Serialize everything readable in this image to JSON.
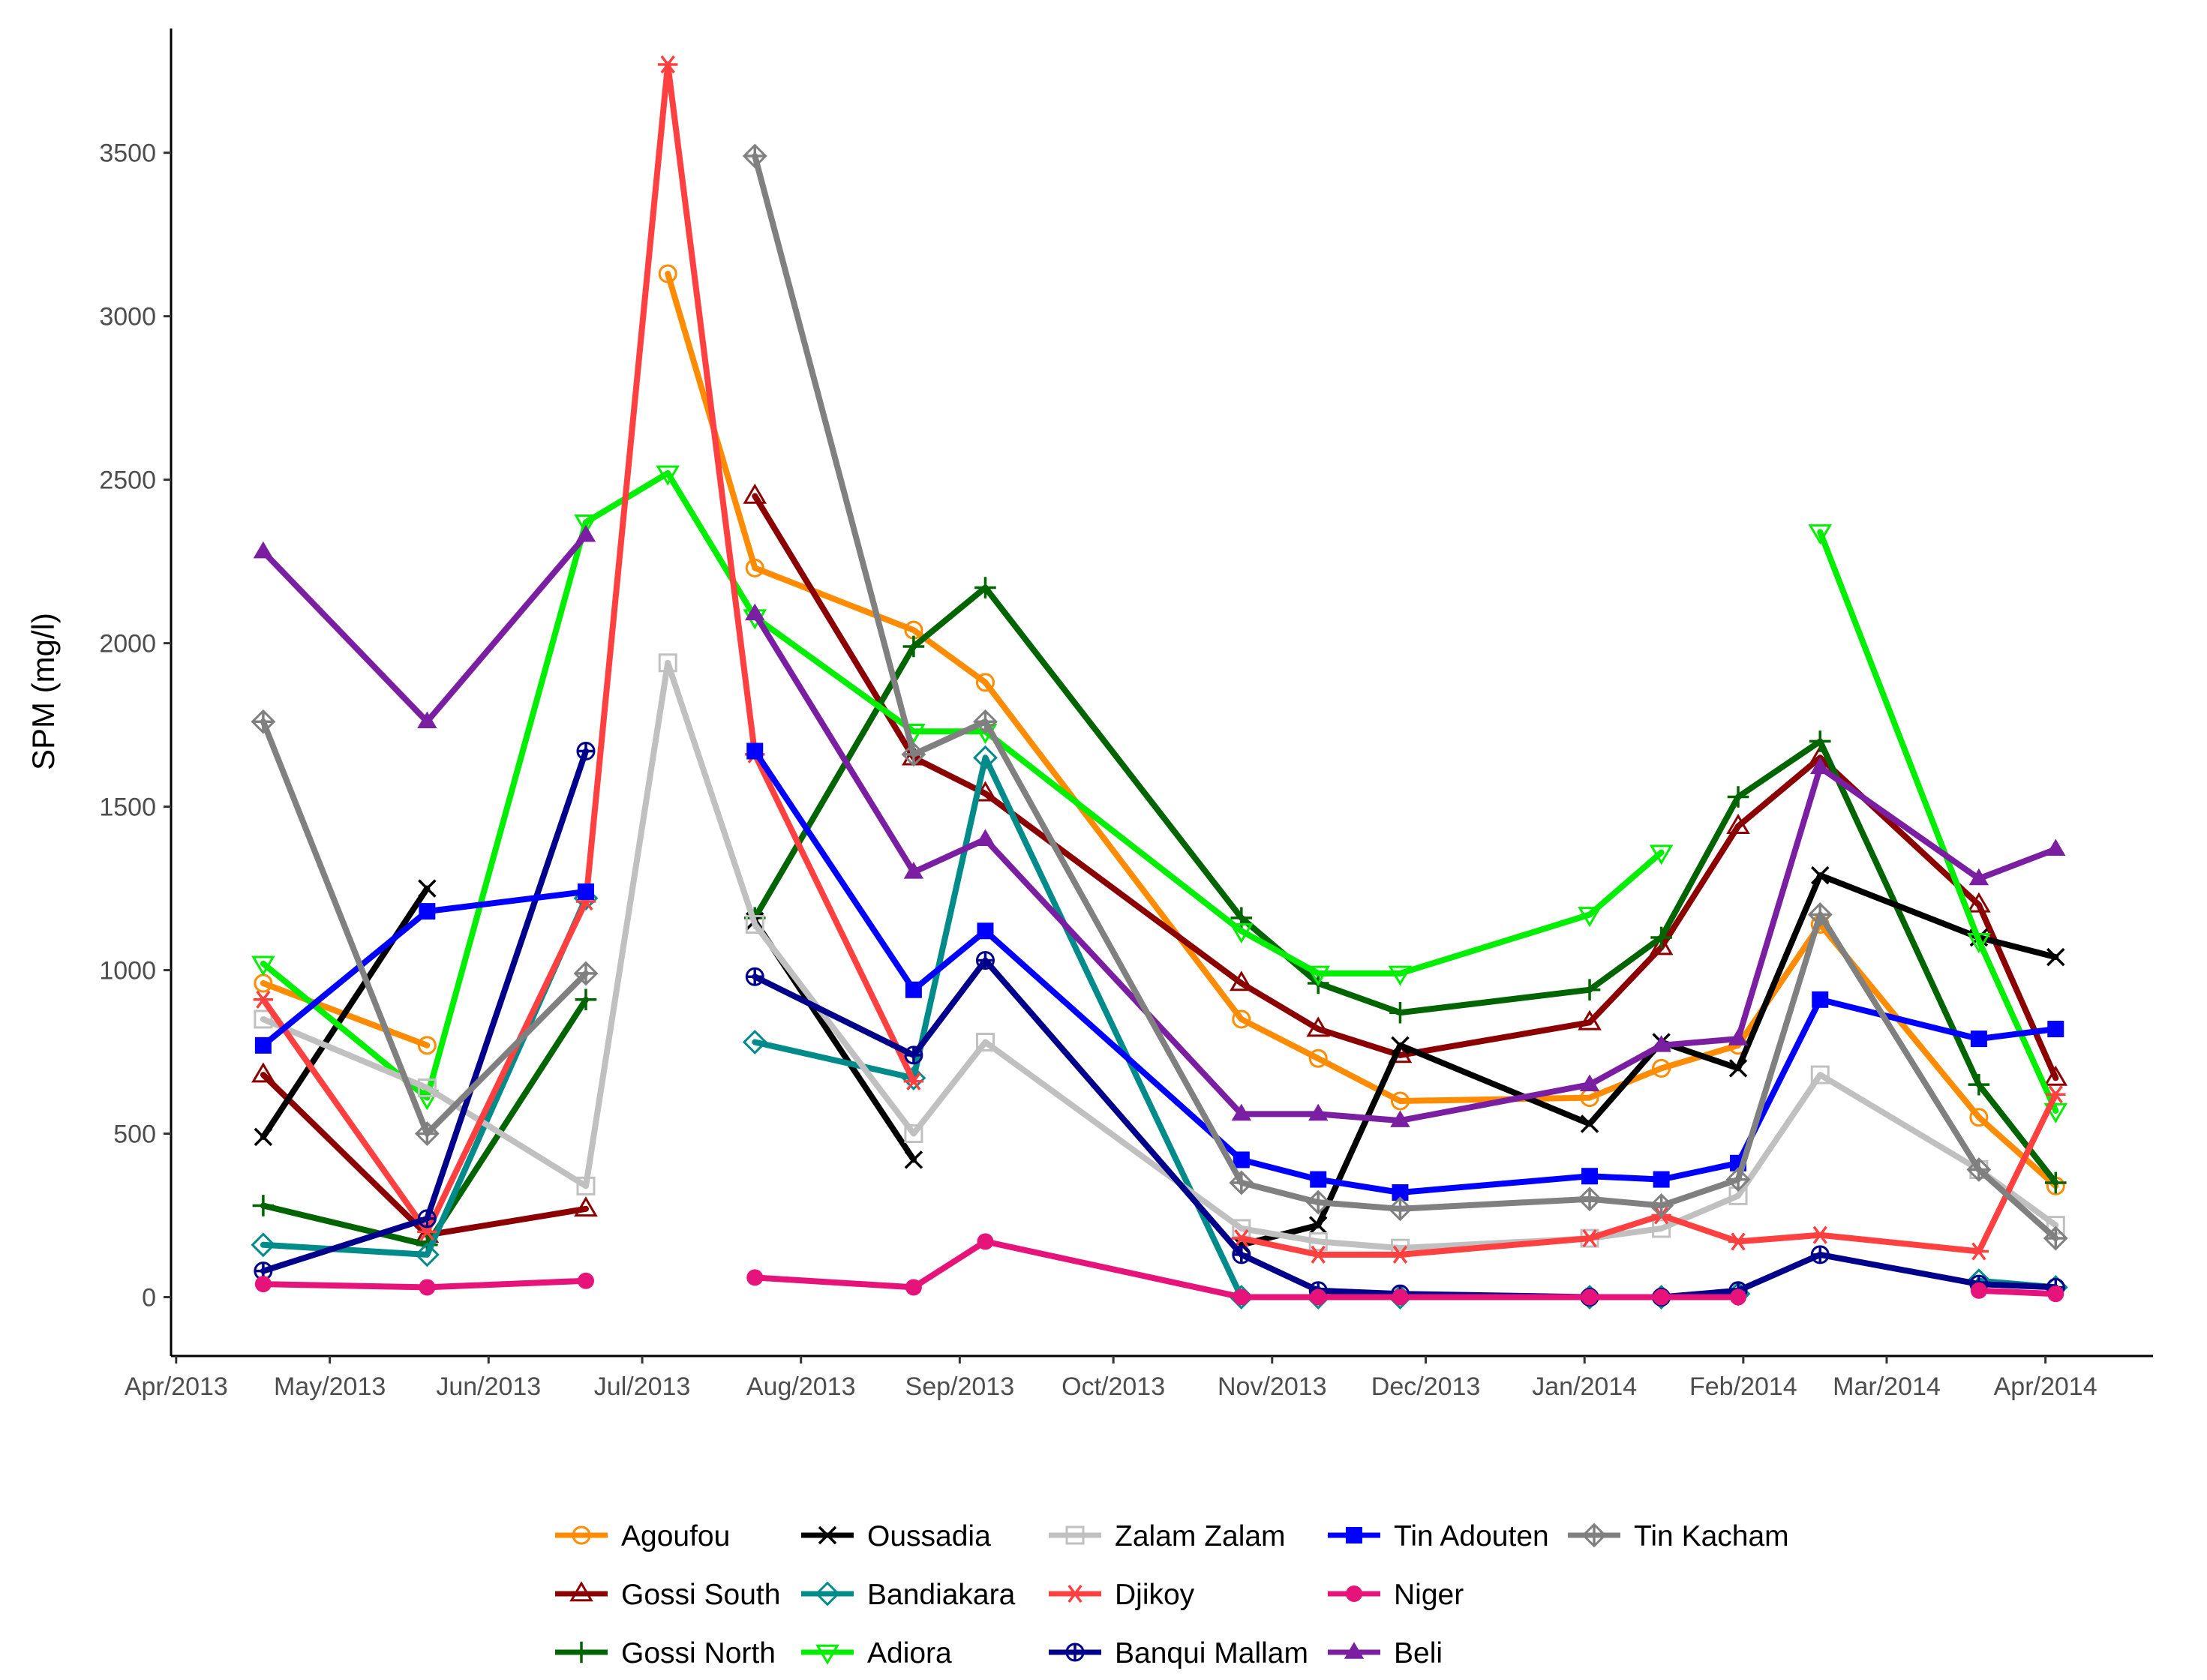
{
  "chart_data": {
    "type": "line",
    "title": "",
    "xlabel": "",
    "ylabel": "SPM (mg/l)",
    "x_ticks": [
      "Apr/2013",
      "May/2013",
      "Jun/2013",
      "Jul/2013",
      "Aug/2013",
      "Sep/2013",
      "Oct/2013",
      "Nov/2013",
      "Dec/2013",
      "Jan/2014",
      "Feb/2014",
      "Mar/2014",
      "Apr/2014"
    ],
    "y_ticks": [
      0,
      500,
      1000,
      1500,
      2000,
      2500,
      3000,
      3500
    ],
    "xlim": [
      "2013-03-31",
      "2014-04-22"
    ],
    "ylim": [
      -180,
      3880
    ],
    "grid": false,
    "legend_position": "bottom",
    "x": [
      "2013-04-18",
      "2013-05-20",
      "2013-06-20",
      "2013-07-06",
      "2013-07-23",
      "2013-08-23",
      "2013-09-06",
      "2013-10-26",
      "2013-11-10",
      "2013-11-26",
      "2014-01-02",
      "2014-01-16",
      "2014-01-31",
      "2014-02-16",
      "2014-03-19",
      "2014-04-03"
    ],
    "series": [
      {
        "name": "Agoufou",
        "color": "#ff8c00",
        "marker": "circle-open",
        "values": [
          960,
          770,
          null,
          3130,
          2230,
          2040,
          1880,
          850,
          730,
          600,
          610,
          700,
          770,
          1140,
          550,
          340
        ]
      },
      {
        "name": "Gossi South",
        "color": "#8b0000",
        "marker": "triangle-open",
        "values": [
          680,
          190,
          270,
          null,
          2450,
          1650,
          1540,
          960,
          820,
          740,
          840,
          1070,
          1440,
          1650,
          1200,
          670
        ]
      },
      {
        "name": "Gossi North",
        "color": "#006400",
        "marker": "plus",
        "values": [
          280,
          160,
          910,
          null,
          1160,
          1990,
          2170,
          1160,
          960,
          870,
          940,
          1100,
          1530,
          1700,
          650,
          350
        ]
      },
      {
        "name": "Oussadia",
        "color": "#000000",
        "marker": "cross",
        "values": [
          490,
          1250,
          null,
          null,
          1150,
          420,
          null,
          160,
          220,
          770,
          530,
          780,
          700,
          1290,
          1100,
          1040
        ]
      },
      {
        "name": "Bandiakara",
        "color": "#008b8b",
        "marker": "diamond-open",
        "values": [
          160,
          130,
          1220,
          null,
          780,
          670,
          1650,
          0,
          0,
          0,
          0,
          0,
          10,
          null,
          50,
          30
        ]
      },
      {
        "name": "Adiora",
        "color": "#00ee00",
        "marker": "triangle-down-open",
        "values": [
          1020,
          610,
          2370,
          2520,
          2080,
          1730,
          1730,
          1120,
          990,
          990,
          1170,
          1360,
          null,
          2340,
          1090,
          570
        ]
      },
      {
        "name": "Zalam Zalam",
        "color": "#c0c0c0",
        "marker": "square-open",
        "values": [
          850,
          640,
          340,
          1940,
          1140,
          500,
          780,
          210,
          170,
          150,
          180,
          210,
          310,
          680,
          390,
          220
        ]
      },
      {
        "name": "Djikoy",
        "color": "#ff4040",
        "marker": "asterisk",
        "values": [
          910,
          200,
          1210,
          3770,
          1660,
          660,
          null,
          180,
          130,
          130,
          180,
          250,
          170,
          190,
          140,
          620
        ]
      },
      {
        "name": "Banqui Mallam",
        "color": "#00008b",
        "marker": "circle-plus",
        "values": [
          80,
          240,
          1670,
          null,
          980,
          740,
          1030,
          130,
          20,
          10,
          0,
          0,
          20,
          130,
          40,
          30
        ]
      },
      {
        "name": "Tin Adouten",
        "color": "#0000ff",
        "marker": "square",
        "values": [
          770,
          1180,
          1240,
          null,
          1670,
          940,
          1120,
          420,
          360,
          320,
          370,
          360,
          410,
          910,
          790,
          820
        ]
      },
      {
        "name": "Niger",
        "color": "#e6137a",
        "marker": "circle",
        "values": [
          40,
          30,
          50,
          null,
          60,
          30,
          170,
          0,
          0,
          0,
          0,
          0,
          0,
          null,
          20,
          10
        ]
      },
      {
        "name": "Beli",
        "color": "#7b1fa2",
        "marker": "triangle",
        "values": [
          2280,
          1760,
          2330,
          null,
          2090,
          1300,
          1400,
          560,
          560,
          540,
          650,
          770,
          790,
          1620,
          1280,
          1370
        ]
      },
      {
        "name": "Tin Kacham",
        "color": "#808080",
        "marker": "diamond-plus",
        "values": [
          1760,
          500,
          990,
          null,
          3490,
          1660,
          1760,
          350,
          290,
          270,
          300,
          280,
          360,
          1170,
          390,
          180
        ]
      }
    ]
  },
  "legend": {
    "columns": [
      [
        "Agoufou",
        "Gossi South",
        "Gossi North"
      ],
      [
        "Oussadia",
        "Bandiakara",
        "Adiora"
      ],
      [
        "Zalam Zalam",
        "Djikoy",
        "Banqui Mallam"
      ],
      [
        "Tin Adouten",
        "Niger",
        "Beli"
      ],
      [
        "Tin Kacham"
      ]
    ]
  }
}
